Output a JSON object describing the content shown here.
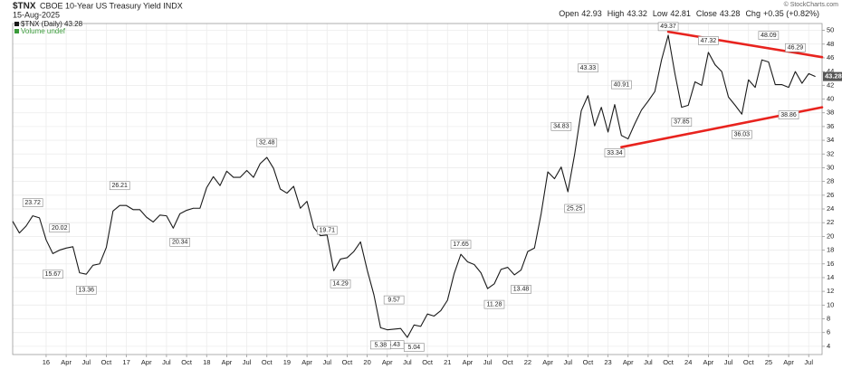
{
  "chart_data": {
    "type": "line",
    "symbol": "$TNX",
    "title": "CBOE 10-Year US Treasury Yield INDX",
    "date": "15-Aug-2025",
    "credit": "© StockCharts.com",
    "quote": [
      {
        "label": "Open",
        "value": 42.93
      },
      {
        "label": "High",
        "value": 43.32
      },
      {
        "label": "Low",
        "value": 42.81
      },
      {
        "label": "Close",
        "value": 43.28
      },
      {
        "label": "Chg",
        "value": 0.35,
        "value_label": "+0.35 (+0.82%)"
      }
    ],
    "legend": [
      "$TNX (Daily) 43.28",
      "Volume undef"
    ],
    "x": [
      "2015-08",
      "2015-09",
      "2015-10",
      "2015-11",
      "2015-12",
      "2016-01",
      "2016-02",
      "2016-03",
      "2016-04",
      "2016-05",
      "2016-06",
      "2016-07",
      "2016-08",
      "2016-09",
      "2016-10",
      "2016-11",
      "2016-12",
      "2017-01",
      "2017-02",
      "2017-03",
      "2017-04",
      "2017-05",
      "2017-06",
      "2017-07",
      "2017-08",
      "2017-09",
      "2017-10",
      "2017-11",
      "2017-12",
      "2018-01",
      "2018-02",
      "2018-03",
      "2018-04",
      "2018-05",
      "2018-06",
      "2018-07",
      "2018-08",
      "2018-09",
      "2018-10",
      "2018-11",
      "2018-12",
      "2019-01",
      "2019-02",
      "2019-03",
      "2019-04",
      "2019-05",
      "2019-06",
      "2019-07",
      "2019-08",
      "2019-09",
      "2019-10",
      "2019-11",
      "2019-12",
      "2020-01",
      "2020-02",
      "2020-03",
      "2020-04",
      "2020-05",
      "2020-06",
      "2020-07",
      "2020-08",
      "2020-09",
      "2020-10",
      "2020-11",
      "2020-12",
      "2021-01",
      "2021-02",
      "2021-03",
      "2021-04",
      "2021-05",
      "2021-06",
      "2021-07",
      "2021-08",
      "2021-09",
      "2021-10",
      "2021-11",
      "2021-12",
      "2022-01",
      "2022-02",
      "2022-03",
      "2022-04",
      "2022-05",
      "2022-06",
      "2022-07",
      "2022-08",
      "2022-09",
      "2022-10",
      "2022-11",
      "2022-12",
      "2023-01",
      "2023-02",
      "2023-03",
      "2023-04",
      "2023-05",
      "2023-06",
      "2023-07",
      "2023-08",
      "2023-09",
      "2023-10",
      "2023-11",
      "2023-12",
      "2024-01",
      "2024-02",
      "2024-03",
      "2024-04",
      "2024-05",
      "2024-06",
      "2024-07",
      "2024-08",
      "2024-09",
      "2024-10",
      "2024-11",
      "2024-12",
      "2025-01",
      "2025-02",
      "2025-03",
      "2025-04",
      "2025-05",
      "2025-06",
      "2025-07",
      "2025-08"
    ],
    "series": [
      {
        "name": "$TNX",
        "color": "#1a1a1a",
        "values": [
          22.2,
          20.5,
          21.5,
          23.0,
          22.7,
          19.5,
          17.5,
          18.0,
          18.3,
          18.5,
          14.7,
          14.5,
          15.8,
          16.0,
          18.4,
          23.7,
          24.5,
          24.5,
          23.9,
          23.9,
          22.8,
          22.1,
          23.1,
          23.0,
          21.2,
          23.3,
          23.8,
          24.1,
          24.1,
          27.1,
          28.7,
          27.4,
          29.5,
          28.6,
          28.6,
          29.6,
          28.6,
          30.6,
          31.5,
          29.9,
          26.9,
          26.3,
          27.3,
          24.1,
          25.1,
          21.3,
          20.1,
          20.2,
          15.0,
          16.7,
          16.9,
          17.8,
          19.2,
          15.1,
          11.5,
          6.7,
          6.4,
          6.5,
          6.6,
          5.3,
          7.1,
          6.9,
          8.7,
          8.4,
          9.2,
          10.7,
          14.6,
          17.4,
          16.3,
          15.9,
          14.7,
          12.4,
          13.1,
          15.2,
          15.5,
          14.4,
          15.1,
          17.8,
          18.3,
          23.3,
          29.4,
          28.4,
          30.1,
          26.5,
          31.9,
          38.3,
          40.5,
          36.1,
          38.8,
          35.2,
          39.2,
          34.7,
          34.2,
          36.4,
          38.4,
          39.7,
          41.1,
          45.7,
          49.3,
          43.7,
          38.8,
          39.1,
          42.5,
          42.0,
          46.8,
          45.0,
          44.0,
          40.3,
          39.1,
          37.8,
          42.8,
          41.7,
          45.7,
          45.4,
          42.1,
          42.1,
          41.7,
          44.0,
          42.3,
          43.7,
          43.28
        ]
      }
    ],
    "annotations": [
      {
        "x": "2015-11",
        "value": 23.72,
        "position": "above"
      },
      {
        "x": "2016-03",
        "value": 20.02,
        "position": "above"
      },
      {
        "x": "2016-02",
        "value": 15.67,
        "position": "below"
      },
      {
        "x": "2016-07",
        "value": 13.36,
        "position": "below"
      },
      {
        "x": "2016-12",
        "value": 26.21,
        "position": "above"
      },
      {
        "x": "2017-09",
        "value": 20.34,
        "position": "below"
      },
      {
        "x": "2018-10",
        "value": 32.48,
        "position": "above"
      },
      {
        "x": "2019-07",
        "value": 19.71,
        "position": "above"
      },
      {
        "x": "2019-09",
        "value": 14.29,
        "position": "below"
      },
      {
        "x": "2020-05",
        "value": 9.57,
        "position": "above"
      },
      {
        "x": "2020-05",
        "value": 5.43,
        "position": "below"
      },
      {
        "x": "2020-03",
        "value": 5.38,
        "position": "below"
      },
      {
        "x": "2020-08",
        "value": 5.04,
        "position": "below"
      },
      {
        "x": "2021-03",
        "value": 17.65,
        "position": "above"
      },
      {
        "x": "2021-08",
        "value": 11.28,
        "position": "below"
      },
      {
        "x": "2021-12",
        "value": 13.48,
        "position": "below"
      },
      {
        "x": "2022-06",
        "value": 34.83,
        "position": "above"
      },
      {
        "x": "2022-08",
        "value": 25.25,
        "position": "below"
      },
      {
        "x": "2022-10",
        "value": 43.33,
        "position": "above"
      },
      {
        "x": "2023-02",
        "value": 33.34,
        "position": "below"
      },
      {
        "x": "2023-03",
        "value": 40.91,
        "position": "above"
      },
      {
        "x": "2023-10",
        "value": 49.37,
        "position": "above"
      },
      {
        "x": "2023-12",
        "value": 37.85,
        "position": "below"
      },
      {
        "x": "2024-04",
        "value": 47.32,
        "position": "above"
      },
      {
        "x": "2024-09",
        "value": 36.03,
        "position": "below"
      },
      {
        "x": "2025-01",
        "value": 48.09,
        "position": "above"
      },
      {
        "x": "2025-04",
        "value": 38.86,
        "position": "below"
      },
      {
        "x": "2025-05",
        "value": 46.29,
        "position": "above"
      }
    ],
    "trendlines": [
      {
        "color": "#e8231e",
        "x": [
          "2023-10",
          "2025-09"
        ],
        "values": [
          49.8,
          46.1
        ]
      },
      {
        "color": "#e8231e",
        "x": [
          "2023-03",
          "2025-09"
        ],
        "values": [
          33.0,
          38.8
        ]
      }
    ],
    "xlim": [
      "2015-08",
      "2025-09"
    ],
    "xticks": [
      {
        "value": "2016-01",
        "label": "16"
      },
      {
        "value": "2016-04",
        "label": "Apr"
      },
      {
        "value": "2016-07",
        "label": "Jul"
      },
      {
        "value": "2016-10",
        "label": "Oct"
      },
      {
        "value": "2017-01",
        "label": "17"
      },
      {
        "value": "2017-04",
        "label": "Apr"
      },
      {
        "value": "2017-07",
        "label": "Jul"
      },
      {
        "value": "2017-10",
        "label": "Oct"
      },
      {
        "value": "2018-01",
        "label": "18"
      },
      {
        "value": "2018-04",
        "label": "Apr"
      },
      {
        "value": "2018-07",
        "label": "Jul"
      },
      {
        "value": "2018-10",
        "label": "Oct"
      },
      {
        "value": "2019-01",
        "label": "19"
      },
      {
        "value": "2019-04",
        "label": "Apr"
      },
      {
        "value": "2019-07",
        "label": "Jul"
      },
      {
        "value": "2019-10",
        "label": "Oct"
      },
      {
        "value": "2020-01",
        "label": "20"
      },
      {
        "value": "2020-04",
        "label": "Apr"
      },
      {
        "value": "2020-07",
        "label": "Jul"
      },
      {
        "value": "2020-10",
        "label": "Oct"
      },
      {
        "value": "2021-01",
        "label": "21"
      },
      {
        "value": "2021-04",
        "label": "Apr"
      },
      {
        "value": "2021-07",
        "label": "Jul"
      },
      {
        "value": "2021-10",
        "label": "Oct"
      },
      {
        "value": "2022-01",
        "label": "22"
      },
      {
        "value": "2022-04",
        "label": "Apr"
      },
      {
        "value": "2022-07",
        "label": "Jul"
      },
      {
        "value": "2022-10",
        "label": "Oct"
      },
      {
        "value": "2023-01",
        "label": "23"
      },
      {
        "value": "2023-04",
        "label": "Apr"
      },
      {
        "value": "2023-07",
        "label": "Jul"
      },
      {
        "value": "2023-10",
        "label": "Oct"
      },
      {
        "value": "2024-01",
        "label": "24"
      },
      {
        "value": "2024-04",
        "label": "Apr"
      },
      {
        "value": "2024-07",
        "label": "Jul"
      },
      {
        "value": "2024-10",
        "label": "Oct"
      },
      {
        "value": "2025-01",
        "label": "25"
      },
      {
        "value": "2025-04",
        "label": "Apr"
      },
      {
        "value": "2025-07",
        "label": "Jul"
      }
    ],
    "ylim": [
      2.8,
      51
    ],
    "yticks": [
      4,
      6,
      8,
      10,
      12,
      14,
      16,
      18,
      20,
      22,
      24,
      26,
      28,
      30,
      32,
      34,
      36,
      38,
      40,
      42,
      44,
      46,
      48,
      50
    ],
    "grid": true
  }
}
